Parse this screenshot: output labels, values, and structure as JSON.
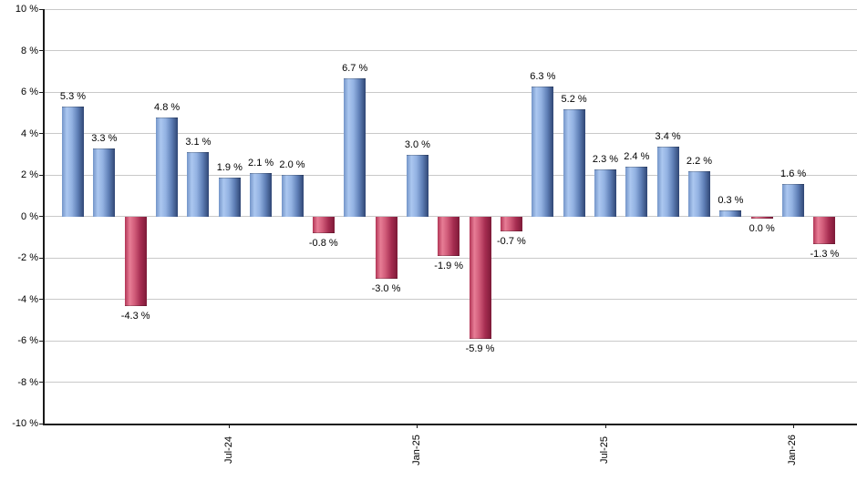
{
  "chart_data": {
    "type": "bar",
    "title": "",
    "xlabel": "",
    "ylabel": "",
    "grid": true,
    "legend": "none",
    "y_axis": {
      "min": -10,
      "max": 10,
      "step": 2,
      "tick_labels": [
        "10 %",
        "8 %",
        "6 %",
        "4 %",
        "2 %",
        "0 %",
        "-2 %",
        "-4 %",
        "-6 %",
        "-8 %",
        "-10 %"
      ]
    },
    "x_ticks": [
      {
        "label": "Jul-24",
        "bar_index": 5
      },
      {
        "label": "Jan-25",
        "bar_index": 11
      },
      {
        "label": "Jul-25",
        "bar_index": 17
      },
      {
        "label": "Jan-26",
        "bar_index": 23
      }
    ],
    "bars": [
      {
        "value": 5.3,
        "label": "5.3 %",
        "direction": "up"
      },
      {
        "value": 3.3,
        "label": "3.3 %",
        "direction": "up"
      },
      {
        "value": -4.3,
        "label": "-4.3 %",
        "direction": "down"
      },
      {
        "value": 4.8,
        "label": "4.8 %",
        "direction": "up"
      },
      {
        "value": 3.1,
        "label": "3.1 %",
        "direction": "up"
      },
      {
        "value": 1.9,
        "label": "1.9 %",
        "direction": "up"
      },
      {
        "value": 2.1,
        "label": "2.1 %",
        "direction": "up"
      },
      {
        "value": 2.0,
        "label": "2.0 %",
        "direction": "up"
      },
      {
        "value": -0.8,
        "label": "-0.8 %",
        "direction": "down"
      },
      {
        "value": 6.7,
        "label": "6.7 %",
        "direction": "up"
      },
      {
        "value": -3.0,
        "label": "-3.0 %",
        "direction": "down"
      },
      {
        "value": 3.0,
        "label": "3.0 %",
        "direction": "up"
      },
      {
        "value": -1.9,
        "label": "-1.9 %",
        "direction": "down"
      },
      {
        "value": -5.9,
        "label": "-5.9 %",
        "direction": "down"
      },
      {
        "value": -0.7,
        "label": "-0.7 %",
        "direction": "down"
      },
      {
        "value": 6.3,
        "label": "6.3 %",
        "direction": "up"
      },
      {
        "value": 5.2,
        "label": "5.2 %",
        "direction": "up"
      },
      {
        "value": 2.3,
        "label": "2.3 %",
        "direction": "up"
      },
      {
        "value": 2.4,
        "label": "2.4 %",
        "direction": "up"
      },
      {
        "value": 3.4,
        "label": "3.4 %",
        "direction": "up"
      },
      {
        "value": 2.2,
        "label": "2.2 %",
        "direction": "up"
      },
      {
        "value": 0.3,
        "label": "0.3 %",
        "direction": "up"
      },
      {
        "value": 0.0,
        "label": "0.0 %",
        "direction": "down"
      },
      {
        "value": 1.6,
        "label": "1.6 %",
        "direction": "up"
      },
      {
        "value": -1.3,
        "label": "-1.3 %",
        "direction": "down"
      }
    ],
    "colors": {
      "positive_gradient": [
        "#7495c8",
        "#abc7f0",
        "#93b2e2",
        "#5f7fb6",
        "#2f4674"
      ],
      "negative_gradient": [
        "#b23556",
        "#e77d95",
        "#d05b79",
        "#a52c50",
        "#7d1a38"
      ],
      "gridline": "#c9c9c9",
      "axis": "#1a1a1a",
      "label": "#000000"
    }
  }
}
